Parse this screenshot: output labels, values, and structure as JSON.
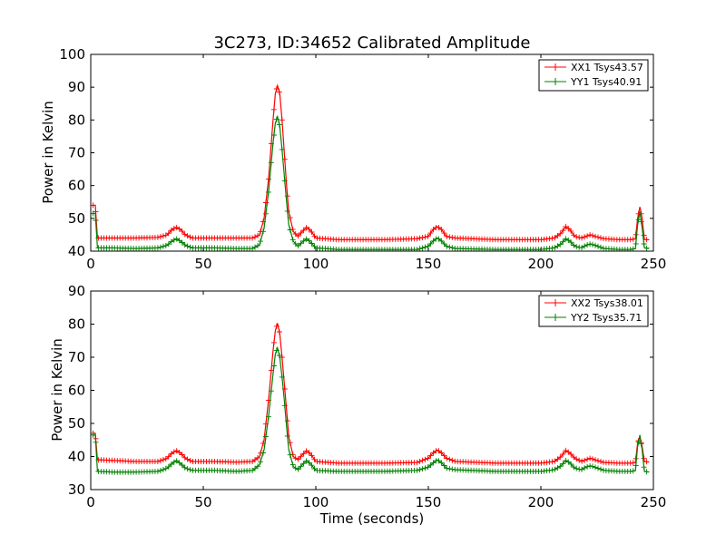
{
  "chart_data": [
    {
      "type": "line",
      "title": "3C273, ID:34652 Calibrated Amplitude",
      "xlabel": "",
      "ylabel": "Power in Kelvin",
      "xlim": [
        0,
        250
      ],
      "ylim": [
        40,
        100
      ],
      "xticks": [
        "0",
        "50",
        "100",
        "150",
        "200",
        "250"
      ],
      "yticks": [
        "40",
        "50",
        "60",
        "70",
        "80",
        "90",
        "100"
      ],
      "grid": false,
      "legend_position": "top-right",
      "series": [
        {
          "name": "XX1 Tsys43.57",
          "color": "#ff0000",
          "points": [
            [
              1,
              54
            ],
            [
              2,
              54
            ],
            [
              3,
              44
            ],
            [
              10,
              44
            ],
            [
              20,
              44
            ],
            [
              30,
              44.2
            ],
            [
              34,
              45
            ],
            [
              36,
              46.5
            ],
            [
              38,
              47.3
            ],
            [
              40,
              46.5
            ],
            [
              42,
              45
            ],
            [
              45,
              44
            ],
            [
              55,
              44
            ],
            [
              65,
              44
            ],
            [
              72,
              44
            ],
            [
              75,
              45
            ],
            [
              77,
              50
            ],
            [
              79,
              62
            ],
            [
              81,
              80
            ],
            [
              82,
              88
            ],
            [
              83,
              90.5
            ],
            [
              84,
              88
            ],
            [
              85,
              80
            ],
            [
              86,
              70
            ],
            [
              87,
              60
            ],
            [
              88,
              52
            ],
            [
              90,
              46
            ],
            [
              92,
              44.5
            ],
            [
              94,
              46
            ],
            [
              96,
              47.3
            ],
            [
              98,
              46
            ],
            [
              100,
              44
            ],
            [
              110,
              43.5
            ],
            [
              130,
              43.5
            ],
            [
              145,
              43.8
            ],
            [
              150,
              44.5
            ],
            [
              152,
              46.5
            ],
            [
              154,
              47.5
            ],
            [
              156,
              46.5
            ],
            [
              158,
              44.5
            ],
            [
              162,
              44
            ],
            [
              180,
              43.5
            ],
            [
              200,
              43.5
            ],
            [
              206,
              44
            ],
            [
              209,
              45.5
            ],
            [
              211,
              47.5
            ],
            [
              213,
              46.5
            ],
            [
              215,
              44.5
            ],
            [
              218,
              44
            ],
            [
              220,
              44.5
            ],
            [
              222,
              45
            ],
            [
              224,
              44.5
            ],
            [
              228,
              43.8
            ],
            [
              235,
              43.5
            ],
            [
              240,
              43.5
            ],
            [
              242,
              43.8
            ],
            [
              243,
              50
            ],
            [
              244,
              53.5
            ],
            [
              245,
              50
            ],
            [
              246,
              43.5
            ],
            [
              248,
              43.5
            ]
          ]
        },
        {
          "name": "YY1 Tsys40.91",
          "color": "#008000",
          "points": [
            [
              1,
              51.5
            ],
            [
              2,
              51.5
            ],
            [
              3,
              41
            ],
            [
              10,
              41
            ],
            [
              20,
              40.8
            ],
            [
              30,
              41
            ],
            [
              34,
              41.8
            ],
            [
              36,
              43
            ],
            [
              38,
              43.8
            ],
            [
              40,
              43
            ],
            [
              42,
              41.8
            ],
            [
              45,
              41
            ],
            [
              55,
              41
            ],
            [
              65,
              40.8
            ],
            [
              72,
              40.8
            ],
            [
              75,
              42
            ],
            [
              77,
              47
            ],
            [
              79,
              58
            ],
            [
              81,
              73
            ],
            [
              82,
              79
            ],
            [
              83,
              81
            ],
            [
              84,
              78
            ],
            [
              85,
              71
            ],
            [
              86,
              63
            ],
            [
              87,
              55
            ],
            [
              88,
              48
            ],
            [
              90,
              43
            ],
            [
              92,
              41.5
            ],
            [
              94,
              42.8
            ],
            [
              96,
              43.8
            ],
            [
              98,
              42.5
            ],
            [
              100,
              41
            ],
            [
              110,
              40.5
            ],
            [
              130,
              40.5
            ],
            [
              145,
              40.5
            ],
            [
              150,
              41.5
            ],
            [
              152,
              43
            ],
            [
              154,
              44
            ],
            [
              156,
              43
            ],
            [
              158,
              41.5
            ],
            [
              162,
              40.8
            ],
            [
              180,
              40.5
            ],
            [
              200,
              40.5
            ],
            [
              206,
              41
            ],
            [
              209,
              42.2
            ],
            [
              211,
              43.8
            ],
            [
              213,
              43
            ],
            [
              215,
              41.5
            ],
            [
              218,
              41
            ],
            [
              220,
              41.8
            ],
            [
              222,
              42.2
            ],
            [
              224,
              41.8
            ],
            [
              228,
              40.8
            ],
            [
              235,
              40.5
            ],
            [
              240,
              40.5
            ],
            [
              242,
              40.8
            ],
            [
              243,
              48
            ],
            [
              244,
              52
            ],
            [
              245,
              47
            ],
            [
              246,
              41
            ],
            [
              248,
              40.8
            ]
          ]
        }
      ]
    },
    {
      "type": "line",
      "title": "",
      "xlabel": "Time (seconds)",
      "ylabel": "Power in Kelvin",
      "xlim": [
        0,
        250
      ],
      "ylim": [
        30,
        90
      ],
      "xticks": [
        "0",
        "50",
        "100",
        "150",
        "200",
        "250"
      ],
      "yticks": [
        "30",
        "40",
        "50",
        "60",
        "70",
        "80",
        "90"
      ],
      "grid": false,
      "legend_position": "top-right",
      "series": [
        {
          "name": "XX2 Tsys38.01",
          "color": "#ff0000",
          "points": [
            [
              1,
              47
            ],
            [
              2,
              47
            ],
            [
              3,
              39
            ],
            [
              10,
              38.8
            ],
            [
              20,
              38.5
            ],
            [
              30,
              38.5
            ],
            [
              34,
              39.5
            ],
            [
              36,
              41
            ],
            [
              38,
              41.8
            ],
            [
              40,
              41
            ],
            [
              42,
              39.5
            ],
            [
              45,
              38.5
            ],
            [
              55,
              38.5
            ],
            [
              65,
              38.3
            ],
            [
              72,
              38.5
            ],
            [
              75,
              40
            ],
            [
              77,
              45
            ],
            [
              79,
              57
            ],
            [
              81,
              72
            ],
            [
              82,
              78
            ],
            [
              83,
              80.3
            ],
            [
              84,
              77
            ],
            [
              85,
              70
            ],
            [
              86,
              62
            ],
            [
              87,
              54
            ],
            [
              88,
              46
            ],
            [
              90,
              40
            ],
            [
              92,
              39
            ],
            [
              94,
              40.5
            ],
            [
              96,
              41.8
            ],
            [
              98,
              40.5
            ],
            [
              100,
              38.5
            ],
            [
              110,
              38
            ],
            [
              130,
              38
            ],
            [
              145,
              38.2
            ],
            [
              150,
              39.5
            ],
            [
              152,
              41
            ],
            [
              154,
              42
            ],
            [
              156,
              41
            ],
            [
              158,
              39.5
            ],
            [
              162,
              38.5
            ],
            [
              180,
              38
            ],
            [
              200,
              38
            ],
            [
              206,
              38.5
            ],
            [
              209,
              40
            ],
            [
              211,
              41.8
            ],
            [
              213,
              41
            ],
            [
              215,
              39.5
            ],
            [
              218,
              38.5
            ],
            [
              220,
              39
            ],
            [
              222,
              39.5
            ],
            [
              224,
              39
            ],
            [
              228,
              38.2
            ],
            [
              235,
              38
            ],
            [
              240,
              38
            ],
            [
              242,
              38.2
            ],
            [
              243,
              44
            ],
            [
              244,
              46
            ],
            [
              245,
              43
            ],
            [
              246,
              38.5
            ],
            [
              248,
              38.3
            ]
          ]
        },
        {
          "name": "YY2 Tsys35.71",
          "color": "#008000",
          "points": [
            [
              1,
              46.5
            ],
            [
              2,
              46.5
            ],
            [
              3,
              35.5
            ],
            [
              10,
              35.3
            ],
            [
              20,
              35.3
            ],
            [
              30,
              35.5
            ],
            [
              34,
              36.5
            ],
            [
              36,
              37.8
            ],
            [
              38,
              38.8
            ],
            [
              40,
              37.8
            ],
            [
              42,
              36.5
            ],
            [
              45,
              35.8
            ],
            [
              55,
              35.8
            ],
            [
              65,
              35.5
            ],
            [
              72,
              35.8
            ],
            [
              75,
              37.5
            ],
            [
              77,
              42
            ],
            [
              79,
              52
            ],
            [
              81,
              65
            ],
            [
              82,
              71
            ],
            [
              83,
              72.8
            ],
            [
              84,
              70
            ],
            [
              85,
              64
            ],
            [
              86,
              57
            ],
            [
              87,
              49
            ],
            [
              88,
              42
            ],
            [
              90,
              37
            ],
            [
              92,
              36
            ],
            [
              94,
              37.5
            ],
            [
              96,
              38.8
            ],
            [
              98,
              37.5
            ],
            [
              100,
              35.8
            ],
            [
              110,
              35.5
            ],
            [
              130,
              35.5
            ],
            [
              145,
              35.8
            ],
            [
              150,
              36.8
            ],
            [
              152,
              38
            ],
            [
              154,
              39
            ],
            [
              156,
              38
            ],
            [
              158,
              36.5
            ],
            [
              162,
              36
            ],
            [
              180,
              35.5
            ],
            [
              200,
              35.5
            ],
            [
              206,
              36
            ],
            [
              209,
              37.2
            ],
            [
              211,
              38.8
            ],
            [
              213,
              38
            ],
            [
              215,
              36.5
            ],
            [
              218,
              36
            ],
            [
              220,
              36.8
            ],
            [
              222,
              37.2
            ],
            [
              224,
              36.8
            ],
            [
              228,
              35.8
            ],
            [
              235,
              35.5
            ],
            [
              240,
              35.5
            ],
            [
              242,
              35.8
            ],
            [
              243,
              43
            ],
            [
              244,
              46.5
            ],
            [
              245,
              42
            ],
            [
              246,
              35.5
            ],
            [
              248,
              35.3
            ]
          ]
        }
      ]
    }
  ]
}
